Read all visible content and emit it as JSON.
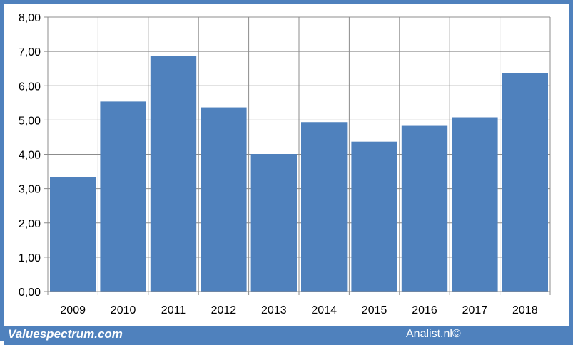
{
  "chart_data": {
    "type": "bar",
    "categories": [
      "2009",
      "2010",
      "2011",
      "2012",
      "2013",
      "2014",
      "2015",
      "2016",
      "2017",
      "2018"
    ],
    "values": [
      3.33,
      5.54,
      6.87,
      5.37,
      4.01,
      4.94,
      4.37,
      4.83,
      5.08,
      6.37
    ],
    "title": "",
    "xlabel": "",
    "ylabel": "",
    "ylim": [
      0,
      8
    ],
    "yticks": [
      "0,00",
      "1,00",
      "2,00",
      "3,00",
      "4,00",
      "5,00",
      "6,00",
      "7,00",
      "8,00"
    ],
    "grid": true,
    "legend": "none",
    "colors": {
      "bar": "#4f81bd",
      "grid": "#8c8c8c",
      "frame": "#4f81bd"
    }
  },
  "footer": {
    "left_text": "Valuespectrum.com",
    "right_text": "Analist.nl©"
  }
}
